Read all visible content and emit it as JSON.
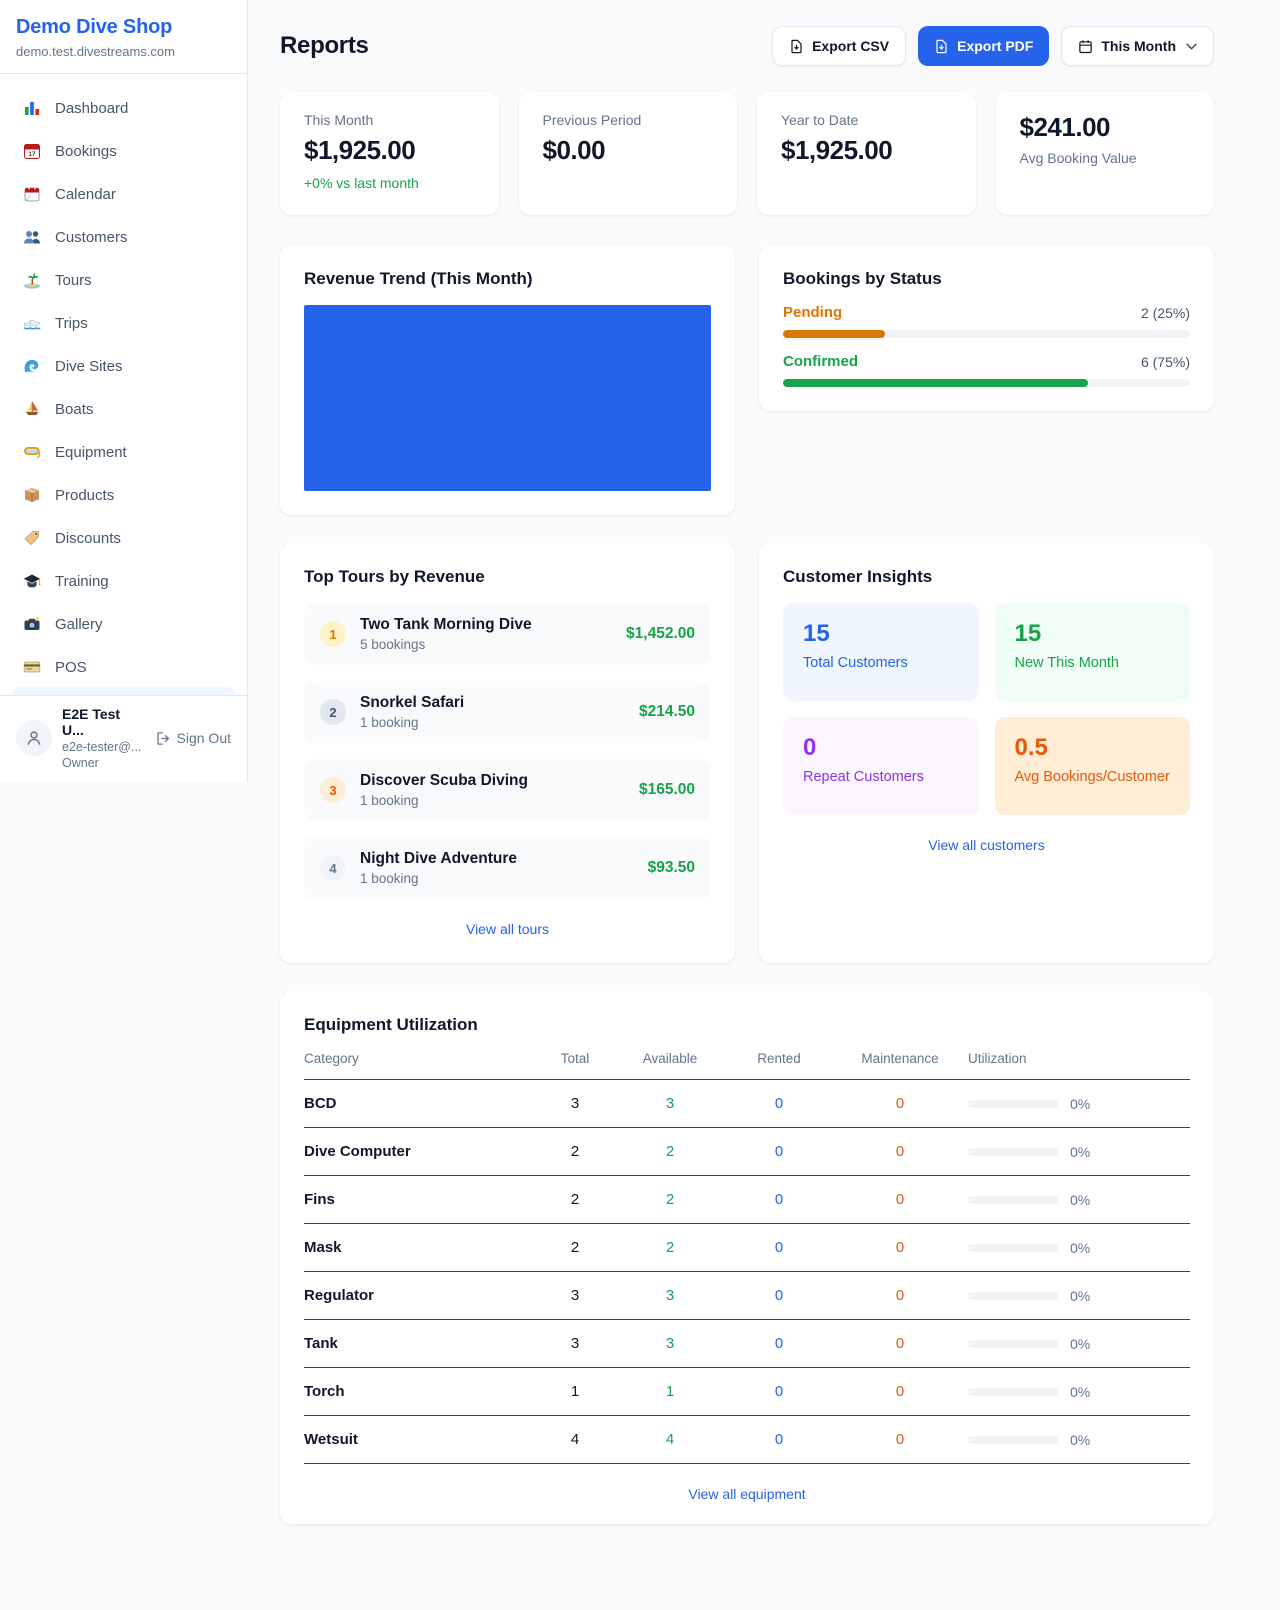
{
  "palette": {
    "accent_blue": "#2563eb",
    "green": "#16a34a",
    "amber": "#d97706",
    "orange": "#ea580c",
    "purple": "#9333ea",
    "text_dark": "#0f172a",
    "text_gray": "#64748b",
    "page_bg": "#f8fafc"
  },
  "sidebar": {
    "shop_name": "Demo Dive Shop",
    "shop_domain": "demo.test.divestreams.com",
    "nav": [
      {
        "label": "Dashboard",
        "icon": "bar-chart-icon"
      },
      {
        "label": "Bookings",
        "icon": "bookings-calendar-icon"
      },
      {
        "label": "Calendar",
        "icon": "calendar-icon"
      },
      {
        "label": "Customers",
        "icon": "customers-icon"
      },
      {
        "label": "Tours",
        "icon": "palm-island-icon"
      },
      {
        "label": "Trips",
        "icon": "speedboat-icon"
      },
      {
        "label": "Dive Sites",
        "icon": "wave-icon"
      },
      {
        "label": "Boats",
        "icon": "sailboat-icon"
      },
      {
        "label": "Equipment",
        "icon": "dive-mask-icon"
      },
      {
        "label": "Products",
        "icon": "package-icon"
      },
      {
        "label": "Discounts",
        "icon": "price-tag-icon"
      },
      {
        "label": "Training",
        "icon": "graduation-cap-icon"
      },
      {
        "label": "Gallery",
        "icon": "camera-icon"
      },
      {
        "label": "POS",
        "icon": "credit-card-icon"
      }
    ],
    "user": {
      "name": "E2E Test U...",
      "email": "e2e-tester@...",
      "role": "Owner",
      "sign_out_label": "Sign Out"
    }
  },
  "header": {
    "title": "Reports",
    "export_csv_label": "Export CSV",
    "export_pdf_label": "Export PDF",
    "period_label": "This Month"
  },
  "stats": [
    {
      "label": "This Month",
      "value": "$1,925.00",
      "delta": "+0% vs last month"
    },
    {
      "label": "Previous Period",
      "value": "$0.00"
    },
    {
      "label": "Year to Date",
      "value": "$1,925.00"
    },
    {
      "label": "Avg Booking Value",
      "value": "$241.00"
    }
  ],
  "revenue_trend": {
    "title": "Revenue Trend (This Month)",
    "chart": {
      "type": "bar",
      "description": "solid blue filled block, no axes or labels visible",
      "categories": [
        "This Month"
      ],
      "values": [
        1925
      ],
      "fill_percent": 100,
      "color": "#2563eb"
    }
  },
  "bookings_by_status": {
    "title": "Bookings by Status",
    "items": [
      {
        "label": "Pending",
        "value_text": "2 (25%)",
        "percent": 25,
        "color": "#d97706"
      },
      {
        "label": "Confirmed",
        "value_text": "6 (75%)",
        "percent": 75,
        "color": "#16a34a"
      }
    ]
  },
  "top_tours": {
    "title": "Top Tours by Revenue",
    "view_all_label": "View all tours",
    "items": [
      {
        "rank": "1",
        "name": "Two Tank Morning Dive",
        "bookings": "5 bookings",
        "revenue": "$1,452.00"
      },
      {
        "rank": "2",
        "name": "Snorkel Safari",
        "bookings": "1 booking",
        "revenue": "$214.50"
      },
      {
        "rank": "3",
        "name": "Discover Scuba Diving",
        "bookings": "1 booking",
        "revenue": "$165.00"
      },
      {
        "rank": "4",
        "name": "Night Dive Adventure",
        "bookings": "1 booking",
        "revenue": "$93.50"
      }
    ]
  },
  "customer_insights": {
    "title": "Customer Insights",
    "view_all_label": "View all customers",
    "tiles": [
      {
        "value": "15",
        "label": "Total Customers",
        "theme": "blue"
      },
      {
        "value": "15",
        "label": "New This Month",
        "theme": "green"
      },
      {
        "value": "0",
        "label": "Repeat Customers",
        "theme": "purple"
      },
      {
        "value": "0.5",
        "label": "Avg Bookings/Customer",
        "theme": "orange"
      }
    ]
  },
  "equipment": {
    "title": "Equipment Utilization",
    "view_all_label": "View all equipment",
    "columns": [
      "Category",
      "Total",
      "Available",
      "Rented",
      "Maintenance",
      "Utilization"
    ],
    "rows": [
      {
        "category": "BCD",
        "total": "3",
        "available": "3",
        "rented": "0",
        "maintenance": "0",
        "utilization": "0%",
        "utilization_percent": 0
      },
      {
        "category": "Dive Computer",
        "total": "2",
        "available": "2",
        "rented": "0",
        "maintenance": "0",
        "utilization": "0%",
        "utilization_percent": 0
      },
      {
        "category": "Fins",
        "total": "2",
        "available": "2",
        "rented": "0",
        "maintenance": "0",
        "utilization": "0%",
        "utilization_percent": 0
      },
      {
        "category": "Mask",
        "total": "2",
        "available": "2",
        "rented": "0",
        "maintenance": "0",
        "utilization": "0%",
        "utilization_percent": 0
      },
      {
        "category": "Regulator",
        "total": "3",
        "available": "3",
        "rented": "0",
        "maintenance": "0",
        "utilization": "0%",
        "utilization_percent": 0
      },
      {
        "category": "Tank",
        "total": "3",
        "available": "3",
        "rented": "0",
        "maintenance": "0",
        "utilization": "0%",
        "utilization_percent": 0
      },
      {
        "category": "Torch",
        "total": "1",
        "available": "1",
        "rented": "0",
        "maintenance": "0",
        "utilization": "0%",
        "utilization_percent": 0
      },
      {
        "category": "Wetsuit",
        "total": "4",
        "available": "4",
        "rented": "0",
        "maintenance": "0",
        "utilization": "0%",
        "utilization_percent": 0
      }
    ]
  }
}
